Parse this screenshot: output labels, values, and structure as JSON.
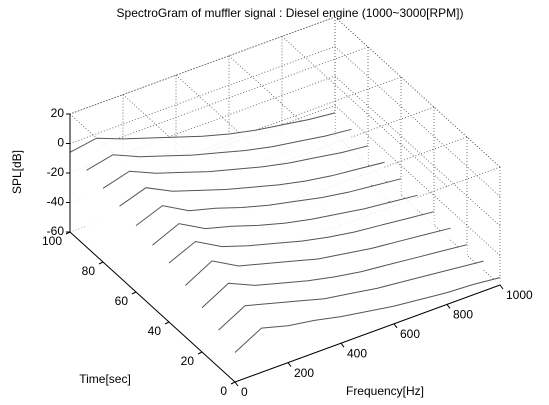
{
  "chart_data": {
    "type": "waterfall",
    "title": "SpectroGram of muffler signal : Diesel  engine (1000~3000[RPM])",
    "xlabel": "Frequency[Hz]",
    "ylabel": "Time[sec]",
    "zlabel": "SPL[dB]",
    "xlim": [
      0,
      1000
    ],
    "ylim": [
      0,
      100
    ],
    "zlim": [
      -60,
      20
    ],
    "xticks": [
      0,
      200,
      400,
      600,
      800,
      1000
    ],
    "yticks": [
      0,
      20,
      40,
      60,
      80,
      100
    ],
    "zticks": [
      -60,
      -40,
      -20,
      0,
      20
    ],
    "grid": true,
    "color": "#555555",
    "x": [
      0,
      100,
      200,
      300,
      400,
      500,
      600,
      700,
      800,
      900,
      1000
    ],
    "y": [
      0,
      10,
      20,
      30,
      40,
      50,
      60,
      70,
      80,
      90,
      100
    ],
    "z": [
      [
        -40,
        -30,
        -35,
        -38,
        -42,
        -45,
        -48,
        -50,
        -52,
        -53,
        -55
      ],
      [
        -35,
        -25,
        -30,
        -35,
        -40,
        -43,
        -46,
        -48,
        -50,
        -52,
        -54
      ],
      [
        -30,
        -20,
        -28,
        -33,
        -38,
        -42,
        -45,
        -47,
        -49,
        -51,
        -53
      ],
      [
        -25,
        -15,
        -25,
        -30,
        -35,
        -40,
        -43,
        -46,
        -48,
        -50,
        -52
      ],
      [
        -20,
        -12,
        -22,
        -28,
        -33,
        -38,
        -42,
        -45,
        -47,
        -49,
        -51
      ],
      [
        -18,
        -10,
        -20,
        -25,
        -31,
        -36,
        -40,
        -43,
        -46,
        -48,
        -50
      ],
      [
        -15,
        -8,
        -18,
        -23,
        -29,
        -34,
        -38,
        -42,
        -45,
        -47,
        -49
      ],
      [
        -12,
        -6,
        -15,
        -21,
        -27,
        -32,
        -37,
        -41,
        -44,
        -46,
        -48
      ],
      [
        -10,
        -5,
        -13,
        -19,
        -25,
        -30,
        -35,
        -39,
        -42,
        -45,
        -47
      ],
      [
        -8,
        -4,
        -12,
        -18,
        -24,
        -29,
        -34,
        -38,
        -41,
        -44,
        -46
      ],
      [
        -6,
        -3,
        -10,
        -16,
        -22,
        -28,
        -33,
        -37,
        -40,
        -43,
        -45
      ]
    ]
  }
}
